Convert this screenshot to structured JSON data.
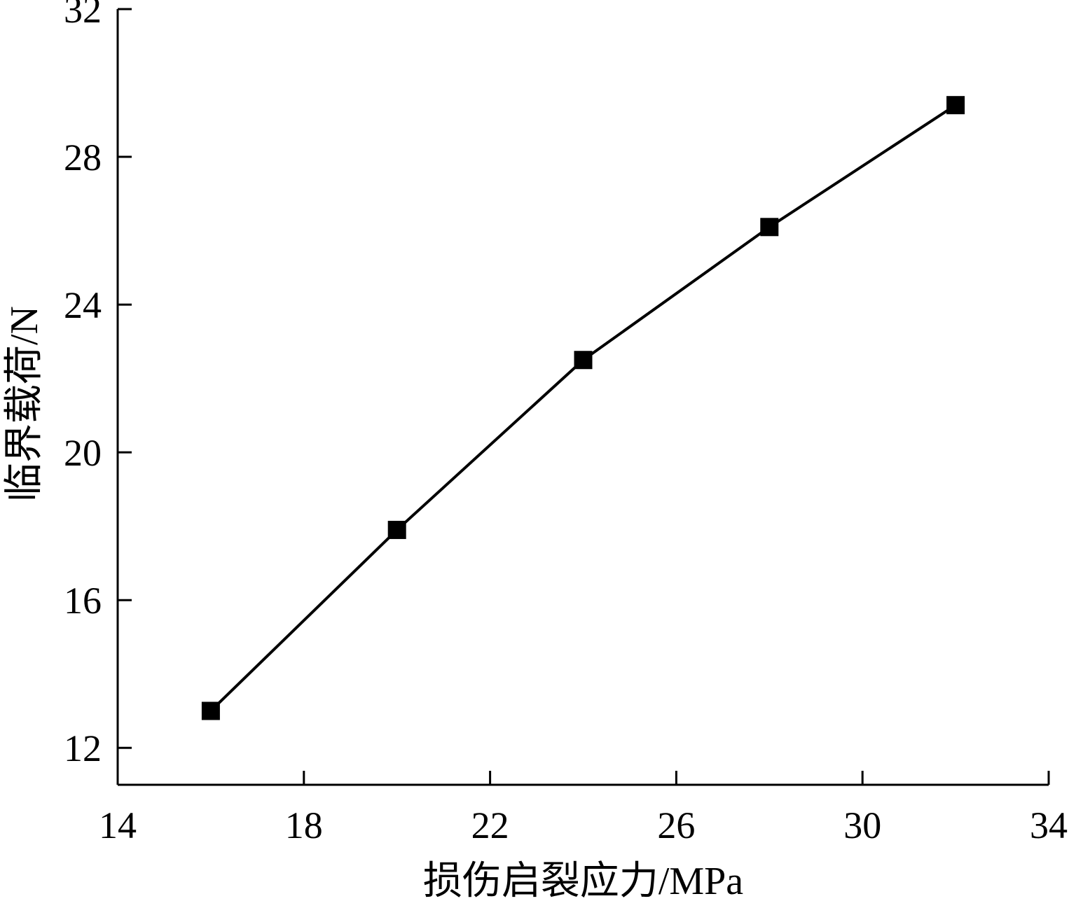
{
  "chart_data": {
    "type": "line",
    "xlabel": "损伤启裂应力/MPa",
    "ylabel": "临界载荷/N",
    "xlim": [
      14,
      34
    ],
    "ylim": [
      11,
      32
    ],
    "xticks": [
      14,
      18,
      22,
      26,
      30,
      34
    ],
    "yticks": [
      12,
      16,
      20,
      24,
      28,
      32
    ],
    "grid": false,
    "series": [
      {
        "marker": "square",
        "color": "#000000",
        "points": [
          {
            "x": 16,
            "y": 13.0
          },
          {
            "x": 20,
            "y": 17.9
          },
          {
            "x": 24,
            "y": 22.5
          },
          {
            "x": 28,
            "y": 26.1
          },
          {
            "x": 32,
            "y": 29.4
          }
        ]
      }
    ]
  }
}
